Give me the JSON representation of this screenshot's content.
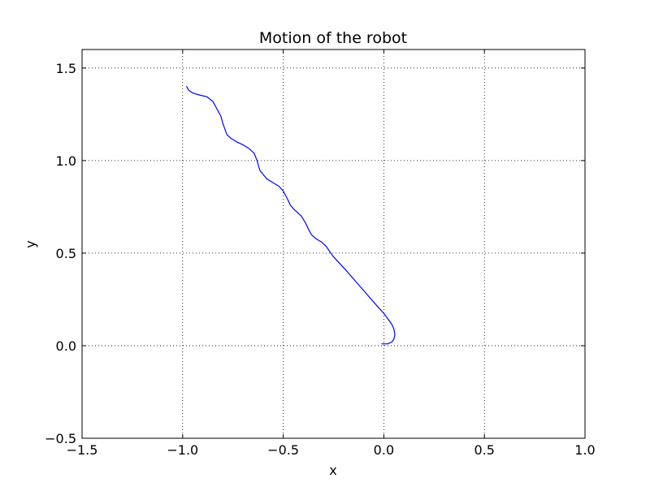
{
  "chart_data": {
    "type": "line",
    "title": "Motion of the robot",
    "xlabel": "x",
    "ylabel": "y",
    "xlim": [
      -1.5,
      1.0
    ],
    "ylim": [
      -0.5,
      1.6
    ],
    "xticks": [
      -1.5,
      -1.0,
      -0.5,
      0.0,
      0.5,
      1.0
    ],
    "xtick_labels": [
      "−1.5",
      "−1.0",
      "−0.5",
      "0.0",
      "0.5",
      "1.0"
    ],
    "yticks": [
      -0.5,
      0.0,
      0.5,
      1.0,
      1.5
    ],
    "ytick_labels": [
      "−0.5",
      "0.0",
      "0.5",
      "1.0",
      "1.5"
    ],
    "grid": true,
    "grid_style": "dotted",
    "series": [
      {
        "color": "#0000ff",
        "x": [
          -0.98,
          -0.97,
          -0.95,
          -0.92,
          -0.88,
          -0.85,
          -0.83,
          -0.81,
          -0.8,
          -0.79,
          -0.78,
          -0.76,
          -0.73,
          -0.7,
          -0.67,
          -0.645,
          -0.63,
          -0.62,
          -0.615,
          -0.6,
          -0.58,
          -0.55,
          -0.52,
          -0.5,
          -0.48,
          -0.465,
          -0.45,
          -0.43,
          -0.41,
          -0.39,
          -0.375,
          -0.36,
          -0.34,
          -0.31,
          -0.285,
          -0.27,
          -0.26,
          -0.25,
          -0.22,
          -0.19,
          -0.15,
          -0.11,
          -0.07,
          -0.03,
          0.0,
          0.02,
          0.04,
          0.05,
          0.055,
          0.05,
          0.04,
          0.02,
          0.005,
          -0.01
        ],
        "y": [
          1.4,
          1.38,
          1.365,
          1.355,
          1.345,
          1.32,
          1.28,
          1.24,
          1.2,
          1.17,
          1.14,
          1.12,
          1.1,
          1.085,
          1.065,
          1.04,
          1.0,
          0.96,
          0.945,
          0.925,
          0.9,
          0.88,
          0.86,
          0.835,
          0.795,
          0.76,
          0.74,
          0.72,
          0.7,
          0.665,
          0.63,
          0.6,
          0.58,
          0.56,
          0.535,
          0.51,
          0.495,
          0.48,
          0.445,
          0.41,
          0.36,
          0.31,
          0.26,
          0.21,
          0.175,
          0.145,
          0.115,
          0.09,
          0.06,
          0.035,
          0.02,
          0.01,
          0.01,
          0.01
        ]
      }
    ]
  }
}
